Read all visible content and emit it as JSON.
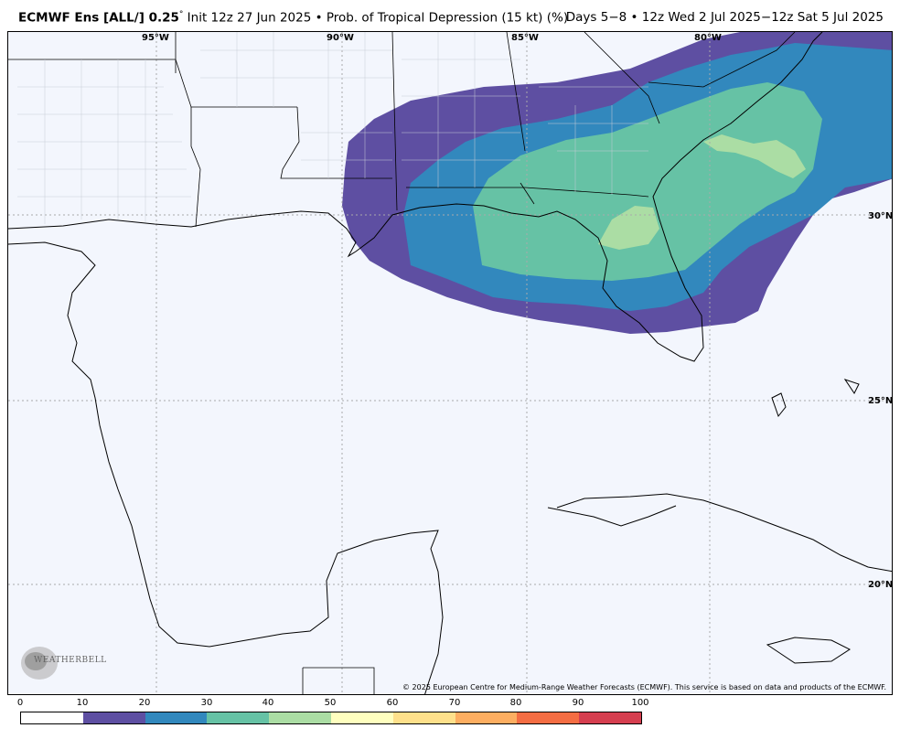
{
  "header": {
    "model": "ECMWF Ens [ALL/] 0.25",
    "degree_mark": "°",
    "description": " Init 12z 27 Jun 2025 • Prob. of Tropical Depression (15 kt) (%)",
    "valid": "Days 5−8 • 12z Wed 2 Jul 2025−12z Sat 5 Jul 2025"
  },
  "map": {
    "longitude_labels": [
      "95°W",
      "90°W",
      "85°W",
      "80°W"
    ],
    "latitude_labels": [
      "30°N",
      "25°N",
      "20°N"
    ],
    "copyright": "© 2025 European Centre for Medium-Range Weather Forecasts (ECMWF). This service is based on data and products of the ECMWF.",
    "logo_text": "WEATHERBELL",
    "colors": {
      "ocean": "#f3f6fd",
      "land": "#f3f6fd",
      "grid": "#aaaaaa"
    }
  },
  "colorbar": {
    "ticks": [
      "0",
      "10",
      "20",
      "30",
      "40",
      "50",
      "60",
      "70",
      "80",
      "90",
      "100"
    ],
    "colors": [
      "#ffffff",
      "#5e4fa2",
      "#3288bd",
      "#66c2a5",
      "#abdda4",
      "#ffffbf",
      "#fee08b",
      "#fdae61",
      "#f46d43",
      "#d53e4f",
      "#9e0142"
    ]
  }
}
